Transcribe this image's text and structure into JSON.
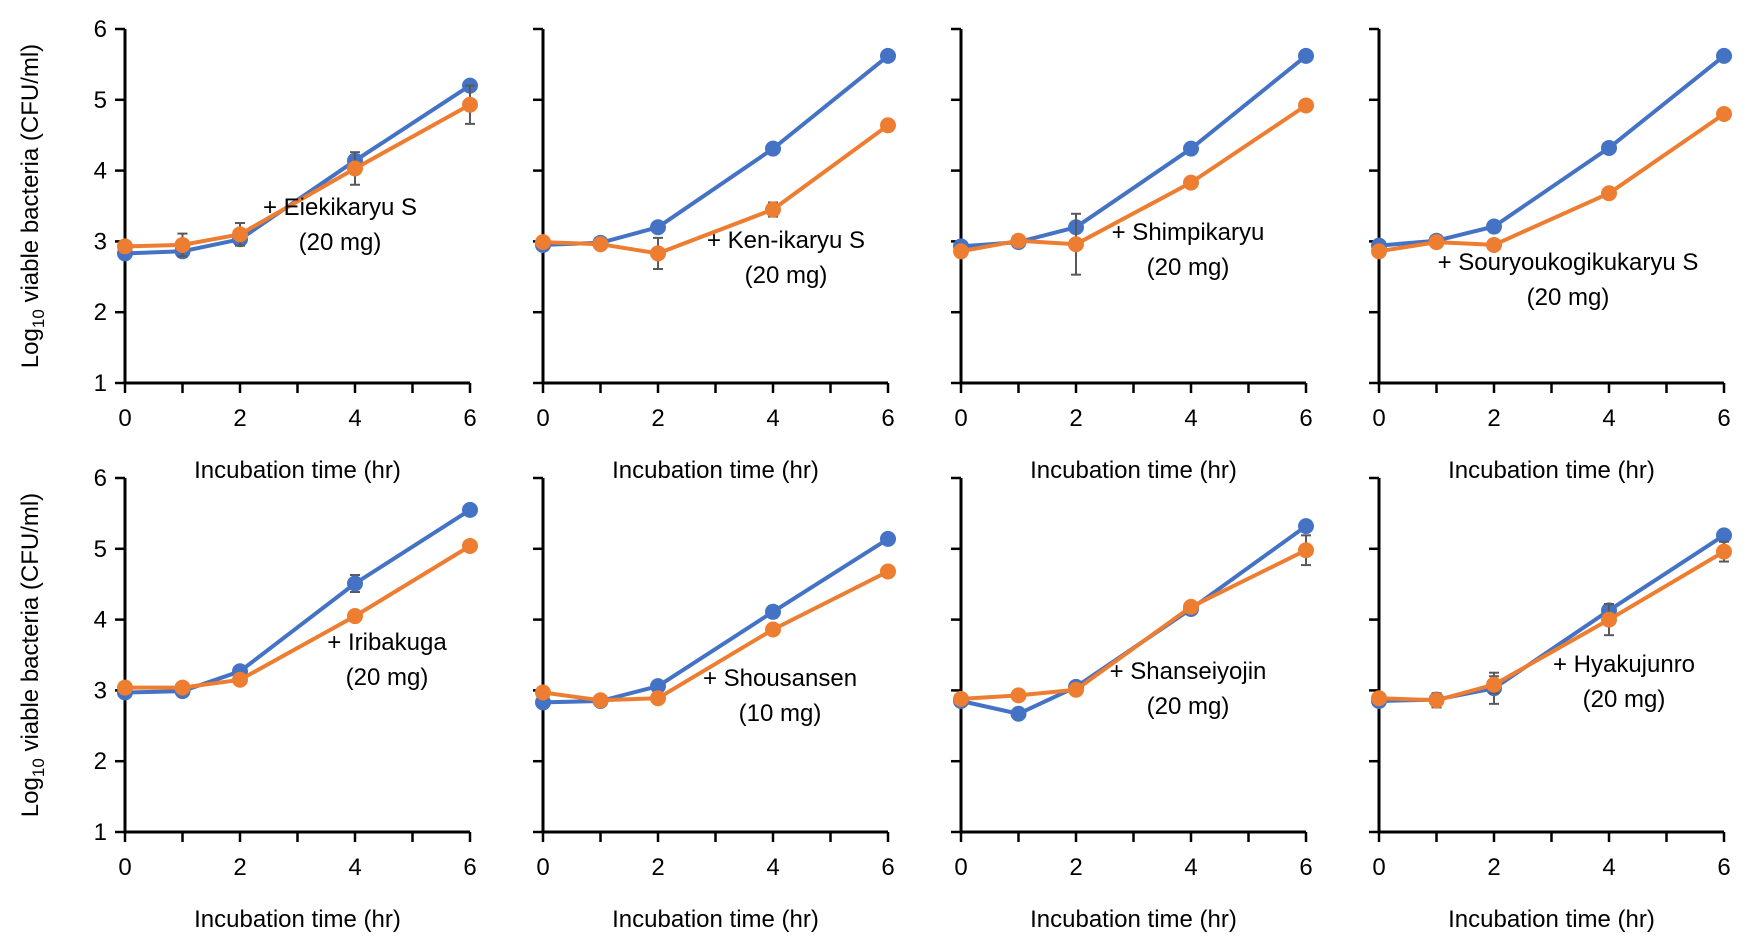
{
  "colors": {
    "blue": "#4472C4",
    "orange": "#ED7D31",
    "error": "#595959"
  },
  "chart_data": [
    {
      "type": "line",
      "annotation": [
        "+ Eiekikaryu S",
        "(20 mg)"
      ],
      "x": [
        0,
        1,
        2,
        4,
        6
      ],
      "xlim": [
        0,
        6
      ],
      "ylim": [
        1,
        6
      ],
      "xticks": [
        "0",
        "2",
        "4",
        "6"
      ],
      "yticks": [
        "1",
        "2",
        "3",
        "4",
        "5",
        "6"
      ],
      "xlabel": "Incubation time (hr)",
      "ylabel": "Log10 viable bacteria (CFU/ml)",
      "ylabel_show": true,
      "series": [
        {
          "color": "blue",
          "values": [
            2.83,
            2.86,
            3.03,
            4.14,
            5.2
          ],
          "errors": [
            0.04,
            0.05,
            0.06,
            0.08,
            0.05
          ]
        },
        {
          "color": "orange",
          "values": [
            2.93,
            2.95,
            3.1,
            4.03,
            4.93
          ],
          "errors": [
            0.04,
            0.16,
            0.16,
            0.23,
            0.27
          ]
        }
      ]
    },
    {
      "type": "line",
      "annotation": [
        "+ Ken-ikaryu S",
        "(20 mg)"
      ],
      "x": [
        0,
        1,
        2,
        4,
        6
      ],
      "xlim": [
        0,
        6
      ],
      "ylim": [
        1,
        6
      ],
      "xticks": [
        "0",
        "2",
        "4",
        "6"
      ],
      "yticks": [],
      "xlabel": "Incubation time (hr)",
      "ylabel": "",
      "ylabel_show": false,
      "series": [
        {
          "color": "blue",
          "values": [
            2.95,
            2.98,
            3.2,
            4.31,
            5.62
          ],
          "errors": [
            0.03,
            0.04,
            0.05,
            0.06,
            0.04
          ]
        },
        {
          "color": "orange",
          "values": [
            2.99,
            2.96,
            2.83,
            3.45,
            4.64
          ],
          "errors": [
            0.03,
            0.05,
            0.22,
            0.1,
            0.05
          ]
        }
      ]
    },
    {
      "type": "line",
      "annotation": [
        "+ Shimpikaryu",
        "(20 mg)"
      ],
      "x": [
        0,
        1,
        2,
        4,
        6
      ],
      "xlim": [
        0,
        6
      ],
      "ylim": [
        1,
        6
      ],
      "xticks": [
        "0",
        "2",
        "4",
        "6"
      ],
      "yticks": [],
      "xlabel": "Incubation time (hr)",
      "ylabel": "",
      "ylabel_show": false,
      "series": [
        {
          "color": "blue",
          "values": [
            2.93,
            2.99,
            3.2,
            4.31,
            5.62
          ],
          "errors": [
            0.03,
            0.04,
            0.05,
            0.06,
            0.04
          ]
        },
        {
          "color": "orange",
          "values": [
            2.86,
            3.01,
            2.96,
            3.83,
            4.92
          ],
          "errors": [
            0.03,
            0.05,
            0.43,
            0.05,
            0.04
          ]
        }
      ]
    },
    {
      "type": "line",
      "annotation": [
        "+ Souryoukogikukaryu S",
        "(20 mg)"
      ],
      "x": [
        0,
        1,
        2,
        4,
        6
      ],
      "xlim": [
        0,
        6
      ],
      "ylim": [
        1,
        6
      ],
      "xticks": [
        "0",
        "2",
        "4",
        "6"
      ],
      "yticks": [],
      "xlabel": "Incubation time (hr)",
      "ylabel": "",
      "ylabel_show": false,
      "series": [
        {
          "color": "blue",
          "values": [
            2.94,
            3.01,
            3.21,
            4.32,
            5.62
          ],
          "errors": [
            0.03,
            0.04,
            0.05,
            0.06,
            0.04
          ]
        },
        {
          "color": "orange",
          "values": [
            2.86,
            2.99,
            2.95,
            3.68,
            4.8
          ],
          "errors": [
            0.03,
            0.05,
            0.05,
            0.05,
            0.04
          ]
        }
      ]
    },
    {
      "type": "line",
      "annotation": [
        "+ Iribakuga",
        "(20 mg)"
      ],
      "x": [
        0,
        1,
        2,
        4,
        6
      ],
      "xlim": [
        0,
        6
      ],
      "ylim": [
        1,
        6
      ],
      "xticks": [
        "0",
        "2",
        "4",
        "6"
      ],
      "yticks": [
        "1",
        "2",
        "3",
        "4",
        "5",
        "6"
      ],
      "xlabel": "Incubation time (hr)",
      "ylabel": "Log10 viable bacteria (CFU/ml)",
      "ylabel_show": true,
      "series": [
        {
          "color": "blue",
          "values": [
            2.97,
            2.99,
            3.27,
            4.51,
            5.55
          ],
          "errors": [
            0.03,
            0.04,
            0.05,
            0.12,
            0.04
          ]
        },
        {
          "color": "orange",
          "values": [
            3.04,
            3.04,
            3.15,
            4.05,
            5.04
          ],
          "errors": [
            0.03,
            0.06,
            0.05,
            0.05,
            0.04
          ]
        }
      ]
    },
    {
      "type": "line",
      "annotation": [
        "+ Shousansen",
        "(10 mg)"
      ],
      "x": [
        0,
        1,
        2,
        4,
        6
      ],
      "xlim": [
        0,
        6
      ],
      "ylim": [
        1,
        6
      ],
      "xticks": [
        "0",
        "2",
        "4",
        "6"
      ],
      "yticks": [],
      "xlabel": "Incubation time (hr)",
      "ylabel": "",
      "ylabel_show": false,
      "series": [
        {
          "color": "blue",
          "values": [
            2.83,
            2.85,
            3.06,
            4.11,
            5.14
          ],
          "errors": [
            0.03,
            0.04,
            0.05,
            0.08,
            0.04
          ]
        },
        {
          "color": "orange",
          "values": [
            2.97,
            2.86,
            2.89,
            3.86,
            4.68
          ],
          "errors": [
            0.03,
            0.05,
            0.05,
            0.05,
            0.04
          ]
        }
      ]
    },
    {
      "type": "line",
      "annotation": [
        "+ Shanseiyojin",
        "(20 mg)"
      ],
      "x": [
        0,
        1,
        2,
        4,
        6
      ],
      "xlim": [
        0,
        6
      ],
      "ylim": [
        1,
        6
      ],
      "xticks": [
        "0",
        "2",
        "4",
        "6"
      ],
      "yticks": [],
      "xlabel": "Incubation time (hr)",
      "ylabel": "",
      "ylabel_show": false,
      "series": [
        {
          "color": "blue",
          "values": [
            2.85,
            2.67,
            3.05,
            4.15,
            5.32
          ],
          "errors": [
            0.03,
            0.04,
            0.05,
            0.06,
            0.04
          ]
        },
        {
          "color": "orange",
          "values": [
            2.88,
            2.93,
            3.01,
            4.18,
            4.98
          ],
          "errors": [
            0.03,
            0.05,
            0.05,
            0.05,
            0.21
          ]
        }
      ]
    },
    {
      "type": "line",
      "annotation": [
        "+ Hyakujunro",
        "(20 mg)"
      ],
      "x": [
        0,
        1,
        2,
        4,
        6
      ],
      "xlim": [
        0,
        6
      ],
      "ylim": [
        1,
        6
      ],
      "xticks": [
        "0",
        "2",
        "4",
        "6"
      ],
      "yticks": [],
      "xlabel": "Incubation time (hr)",
      "ylabel": "",
      "ylabel_show": false,
      "series": [
        {
          "color": "blue",
          "values": [
            2.85,
            2.87,
            3.03,
            4.13,
            5.19
          ],
          "errors": [
            0.03,
            0.06,
            0.22,
            0.06,
            0.05
          ]
        },
        {
          "color": "orange",
          "values": [
            2.89,
            2.86,
            3.08,
            4.0,
            4.96
          ],
          "errors": [
            0.03,
            0.1,
            0.12,
            0.22,
            0.14
          ]
        }
      ]
    }
  ]
}
